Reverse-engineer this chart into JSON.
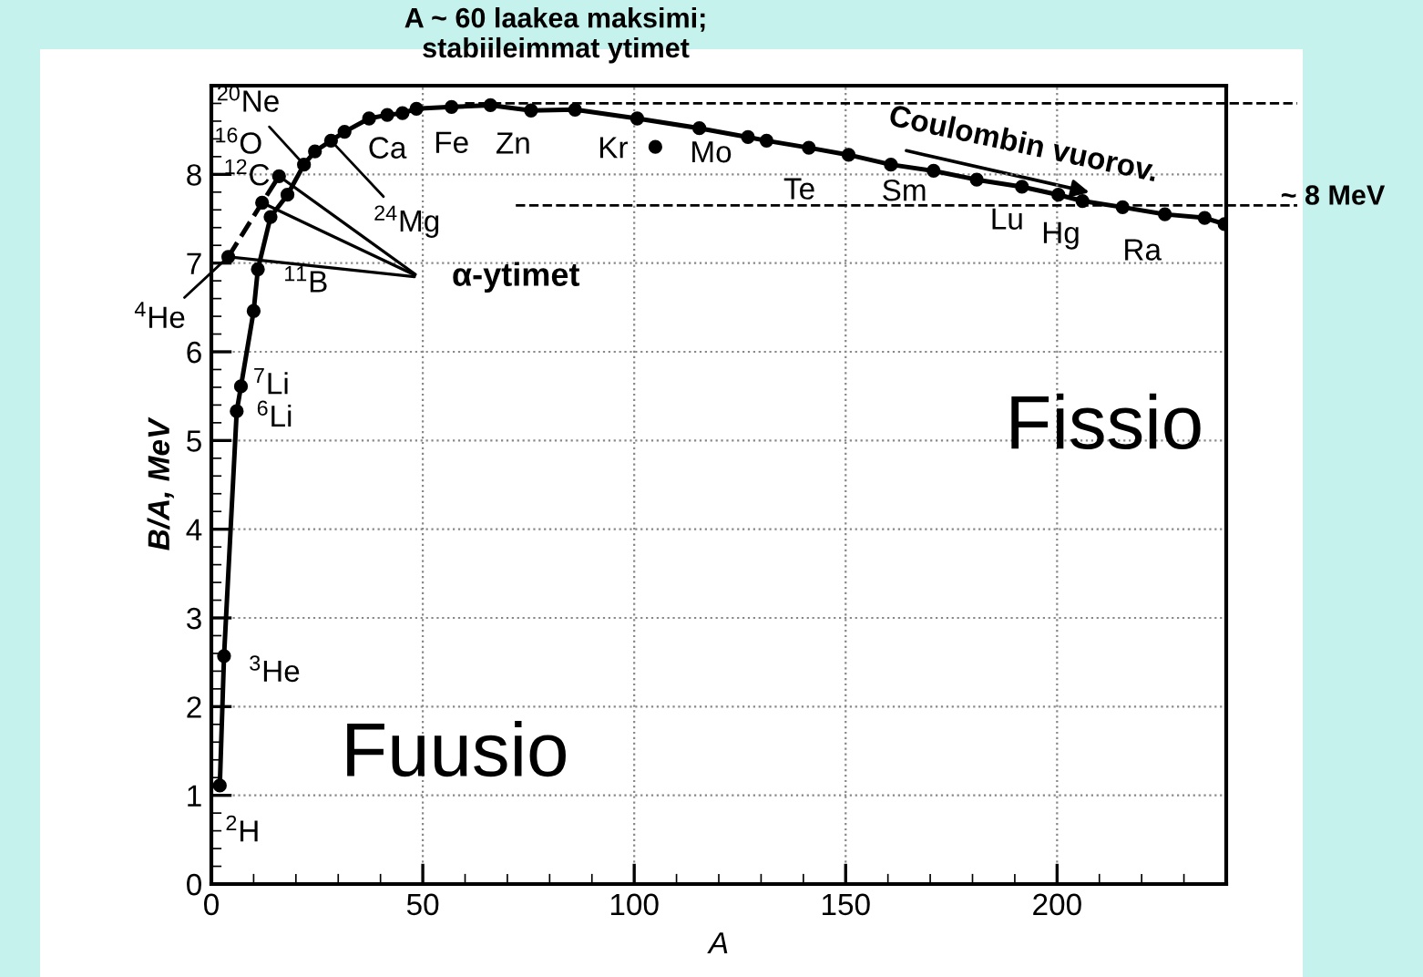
{
  "chart_data": {
    "type": "line",
    "title": "A ~ 60 laakea maksimi;\nstabiileimmat ytimet",
    "xlabel": "A",
    "ylabel": "B/A, MeV",
    "series": [
      {
        "color": "#000000",
        "line_style": "solid",
        "marker": "circle",
        "x": [
          2,
          3,
          6,
          7,
          10,
          11,
          14,
          18,
          21.9,
          24.5,
          28.3,
          31.5,
          37.3,
          41.6,
          45.2,
          48.5,
          56.8,
          66,
          75.6,
          86,
          100.7,
          115.4,
          126.9,
          131.3,
          141.3,
          150.7,
          160.7,
          170.8,
          181,
          191.7,
          200.3,
          206,
          215.5,
          225.5,
          234.9,
          239.6
        ],
        "values": [
          1.11,
          2.57,
          5.33,
          5.61,
          6.46,
          6.93,
          7.52,
          7.77,
          8.11,
          8.26,
          8.38,
          8.48,
          8.63,
          8.67,
          8.69,
          8.74,
          8.76,
          8.78,
          8.72,
          8.73,
          8.63,
          8.52,
          8.42,
          8.38,
          8.3,
          8.22,
          8.11,
          8.04,
          7.94,
          7.86,
          7.77,
          7.7,
          7.63,
          7.55,
          7.51,
          7.44
        ]
      },
      {
        "type": "line",
        "color": "#000000",
        "line_style": "dashed",
        "marker": "circle",
        "x": [
          4,
          12,
          16
        ],
        "values": [
          7.07,
          7.68,
          7.98
        ]
      },
      {
        "type": "scatter",
        "color": "#000000",
        "marker": "circle",
        "x": [
          105
        ],
        "values": [
          8.31
        ]
      }
    ],
    "xlim": [
      0,
      240
    ],
    "ylim": [
      0,
      9
    ],
    "xticks": [
      0,
      50,
      100,
      150,
      200
    ],
    "yticks": [
      0,
      1,
      2,
      3,
      4,
      5,
      6,
      7,
      8
    ],
    "grid": true,
    "ref_lines": [
      {
        "axis": "y",
        "value": 8.8,
        "line_style": "dashed"
      },
      {
        "axis": "y",
        "value": 7.65,
        "line_style": "dashed"
      }
    ],
    "annotations": [
      {
        "text": "$^{2}$H",
        "x": 2,
        "y": 1.11
      },
      {
        "text": "$^{3}$He",
        "x": 3,
        "y": 2.57
      },
      {
        "text": "$^{6}$Li",
        "x": 6,
        "y": 5.33
      },
      {
        "text": "$^{7}$Li",
        "x": 7,
        "y": 5.61
      },
      {
        "text": "$^{11}$B",
        "x": 11,
        "y": 6.93
      },
      {
        "text": "$^{4}$He",
        "x": 4,
        "y": 7.07
      },
      {
        "text": "$^{12}$C",
        "x": 12,
        "y": 7.68
      },
      {
        "text": "$^{16}$O",
        "x": 16,
        "y": 7.98
      },
      {
        "text": "$^{20}$Ne",
        "x": 21.9,
        "y": 8.11
      },
      {
        "text": "$^{24}$Mg",
        "x": 28.3,
        "y": 8.38
      },
      {
        "text": "Ca",
        "x": 41.6,
        "y": 8.67
      },
      {
        "text": "Fe",
        "x": 56.8,
        "y": 8.76
      },
      {
        "text": "Zn",
        "x": 66,
        "y": 8.78
      },
      {
        "text": "Kr",
        "x": 86,
        "y": 8.73
      },
      {
        "text": "Mo",
        "x": 105,
        "y": 8.31
      },
      {
        "text": "Te",
        "x": 131.3,
        "y": 8.38
      },
      {
        "text": "Sm",
        "x": 150.7,
        "y": 8.22
      },
      {
        "text": "Lu",
        "x": 170.8,
        "y": 8.04
      },
      {
        "text": "Hg",
        "x": 200.3,
        "y": 7.77
      },
      {
        "text": "Ra",
        "x": 225.5,
        "y": 7.55
      },
      {
        "text": "α-ytimet",
        "x": 12,
        "y": 7.68
      },
      "Coulombin vuorov.",
      "~ 8 MeV",
      "Fuusio",
      "Fissio"
    ]
  }
}
